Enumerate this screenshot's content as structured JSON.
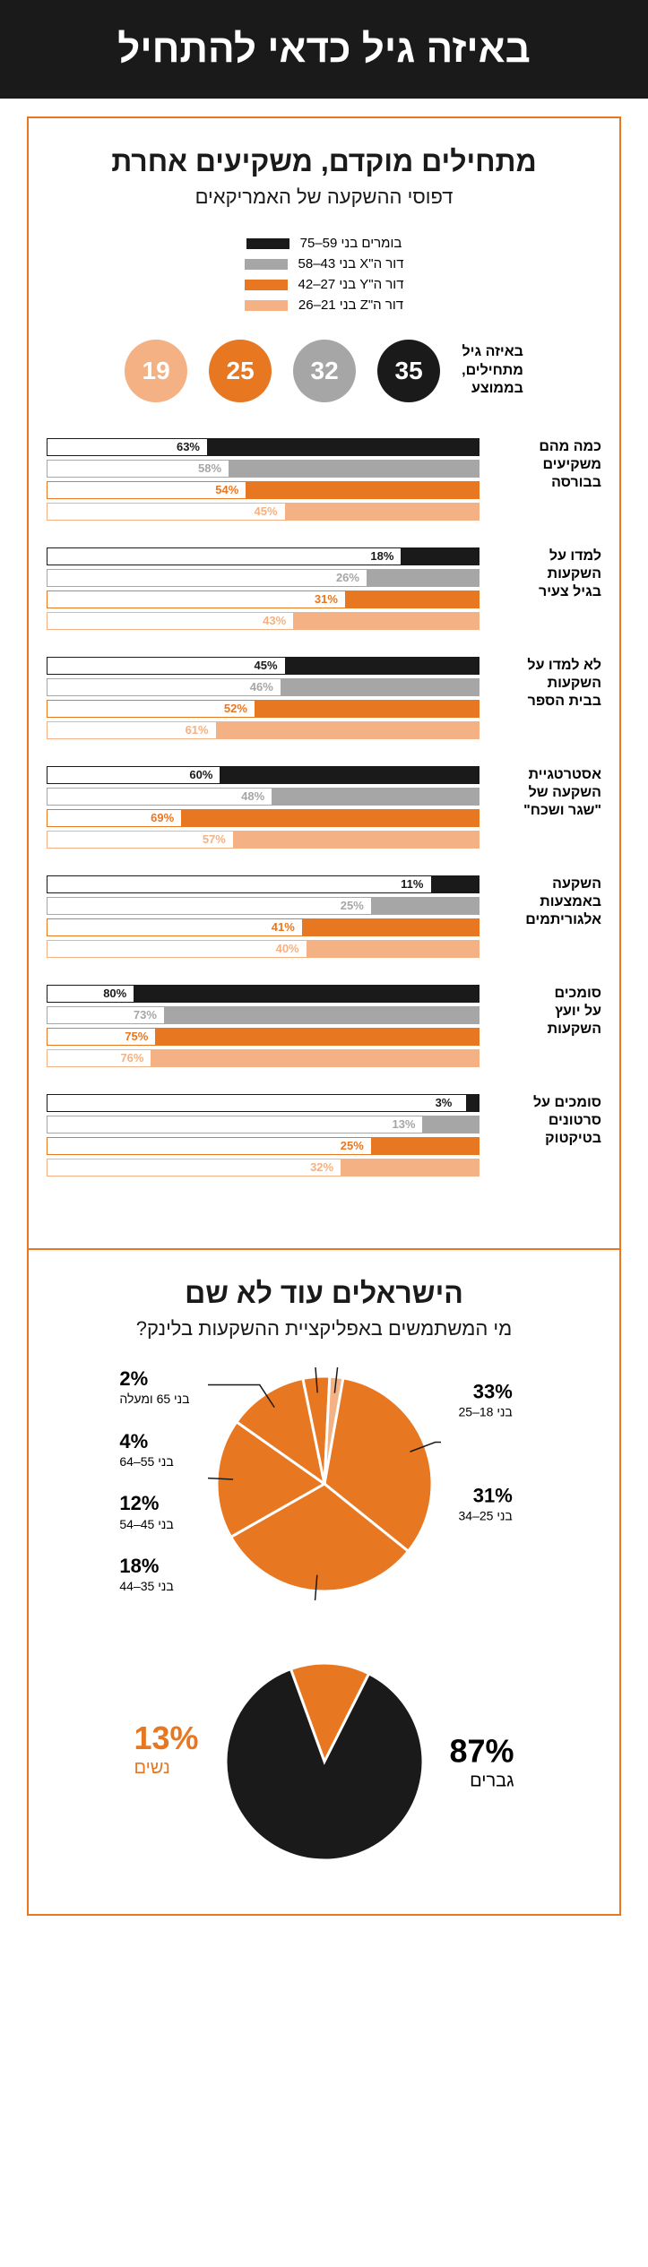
{
  "colors": {
    "black": "#1a1a1a",
    "grey": "#a6a6a6",
    "orange": "#e87722",
    "peach": "#f4b183",
    "white": "#ffffff"
  },
  "header": "באיזה גיל כדאי להתחיל",
  "section1": {
    "title": "מתחילים מוקדם, משקיעים אחרת",
    "subtitle": "דפוסי ההשקעה של האמריקאים",
    "legend": [
      {
        "label": "בומרים בני 59–75",
        "color": "#1a1a1a"
      },
      {
        "label": "דור ה\"X בני 43–58",
        "color": "#a6a6a6"
      },
      {
        "label": "דור ה\"Y בני 27–42",
        "color": "#e87722"
      },
      {
        "label": "דור ה\"Z בני 21–26",
        "color": "#f4b183"
      }
    ],
    "ages_label": "באיזה גיל\nמתחילים,\nבממוצע",
    "ages": [
      {
        "value": "35",
        "color": "#1a1a1a"
      },
      {
        "value": "32",
        "color": "#a6a6a6"
      },
      {
        "value": "25",
        "color": "#e87722"
      },
      {
        "value": "19",
        "color": "#f4b183"
      }
    ],
    "bar_groups": [
      {
        "label": "כמה מהם\nמשקיעים\nבבורסה",
        "values": [
          63,
          58,
          54,
          45
        ]
      },
      {
        "label": "למדו על\nהשקעות\nבגיל צעיר",
        "values": [
          18,
          26,
          31,
          43
        ]
      },
      {
        "label": "לא למדו על\nהשקעות\nבבית הספר",
        "values": [
          45,
          46,
          52,
          61
        ]
      },
      {
        "label": "אסטרטגיית\nהשקעה של\n\"שגר ושכח\"",
        "values": [
          60,
          48,
          69,
          57
        ]
      },
      {
        "label": "השקעה\nבאמצעות\nאלגוריתמים",
        "values": [
          11,
          25,
          41,
          40
        ]
      },
      {
        "label": "סומכים\nעל יועץ\nהשקעות",
        "values": [
          80,
          73,
          75,
          76
        ]
      },
      {
        "label": "סומכים על\nסרטונים\nבטיקטוק",
        "values": [
          3,
          13,
          25,
          32
        ]
      }
    ]
  },
  "section2": {
    "title": "הישראלים עוד לא שם",
    "subtitle": "מי המשתמשים באפליקציית ההשקעות בלינק?",
    "pie": {
      "slices": [
        {
          "pct": 33,
          "label": "בני 18–25",
          "color": "#e87722"
        },
        {
          "pct": 31,
          "label": "בני 25–34",
          "color": "#e87722"
        },
        {
          "pct": 18,
          "label": "בני 35–44",
          "color": "#e87722"
        },
        {
          "pct": 12,
          "label": "בני 45–54",
          "color": "#e87722"
        },
        {
          "pct": 4,
          "label": "בני 55–64",
          "color": "#e87722"
        },
        {
          "pct": 2,
          "label": "בני 65 ומעלה",
          "color": "#f4b183"
        }
      ]
    },
    "gender": {
      "men_pct": 87,
      "men_label": "גברים",
      "men_color": "#1a1a1a",
      "women_pct": 13,
      "women_label": "נשים",
      "women_color": "#e87722"
    }
  }
}
